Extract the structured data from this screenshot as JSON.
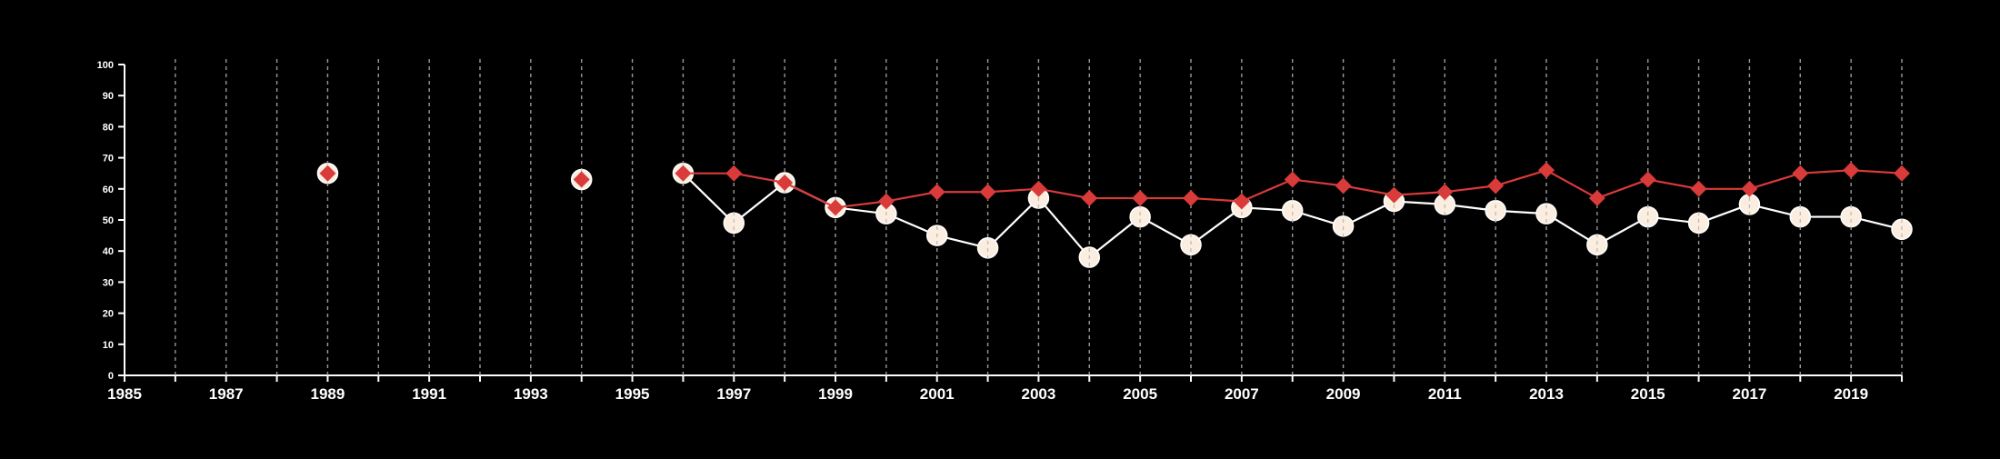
{
  "chart_data": {
    "type": "line",
    "xlim": [
      1985,
      2020
    ],
    "ylim": [
      0,
      100
    ],
    "x_tick_labels": [
      "1985",
      "1987",
      "1989",
      "1991",
      "1993",
      "1995",
      "1997",
      "1999",
      "2001",
      "2003",
      "2005",
      "2007",
      "2009",
      "2011",
      "2013",
      "2015",
      "2017",
      "2019"
    ],
    "y_tick_labels": [
      "0",
      "10",
      "20",
      "30",
      "40",
      "50",
      "60",
      "70",
      "80",
      "90",
      "100"
    ],
    "grid": "vertical dashed at every year",
    "background": "#000000",
    "axis_color": "#ffffff",
    "series": [
      {
        "marker": "circle",
        "color": "#fbeee0",
        "x": [
          1989,
          1994,
          1996,
          1997,
          1998,
          1999,
          2000,
          2001,
          2002,
          2003,
          2004,
          2005,
          2006,
          2007,
          2008,
          2009,
          2010,
          2011,
          2012,
          2013,
          2014,
          2015,
          2016,
          2017,
          2018,
          2019,
          2020
        ],
        "y": [
          65,
          63,
          65,
          49,
          62,
          54,
          52,
          45,
          41,
          57,
          38,
          51,
          42,
          54,
          53,
          48,
          56,
          55,
          53,
          52,
          42,
          51,
          49,
          55,
          51,
          51,
          47
        ]
      },
      {
        "marker": "diamond",
        "color": "#d93a3a",
        "x": [
          1989,
          1994,
          1996,
          1997,
          1998,
          1999,
          2000,
          2001,
          2002,
          2003,
          2004,
          2005,
          2006,
          2007,
          2008,
          2009,
          2010,
          2011,
          2012,
          2013,
          2014,
          2015,
          2016,
          2017,
          2018,
          2019,
          2020
        ],
        "y": [
          65,
          63,
          65,
          65,
          62,
          54,
          56,
          59,
          59,
          60,
          57,
          57,
          57,
          56,
          63,
          61,
          58,
          59,
          61,
          66,
          57,
          63,
          60,
          60,
          65,
          66,
          65
        ]
      }
    ]
  }
}
